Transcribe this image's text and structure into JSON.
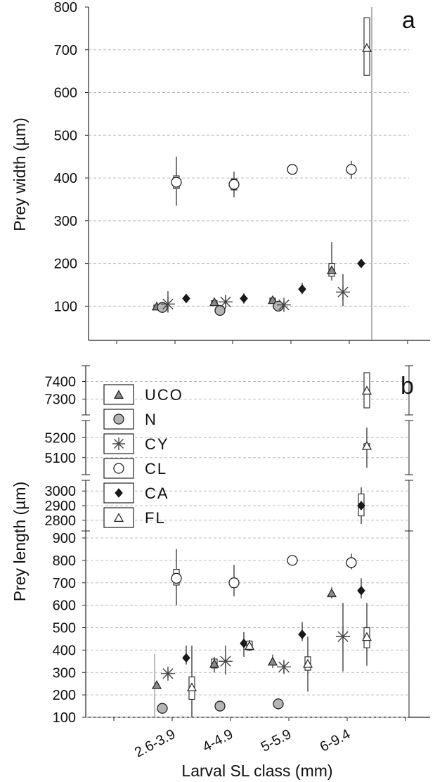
{
  "figure": {
    "xlabel": "Larval SL class (mm)",
    "categories": [
      "2.6-3.9",
      "4-4.9",
      "5-5.9",
      "6-9.4"
    ]
  },
  "legend": [
    {
      "key": "UCO",
      "label": "UCO",
      "marker": "triangle",
      "fill": "#8a8a8a"
    },
    {
      "key": "N",
      "label": "N",
      "marker": "circle",
      "fill": "#b5b5b5"
    },
    {
      "key": "CY",
      "label": "CY",
      "marker": "star",
      "fill": "none"
    },
    {
      "key": "CL",
      "label": "CL",
      "marker": "circle",
      "fill": "#ffffff"
    },
    {
      "key": "CA",
      "label": "CA",
      "marker": "diamond",
      "fill": "#1a1a1a"
    },
    {
      "key": "FL",
      "label": "FL",
      "marker": "triangle",
      "fill": "#ffffff"
    }
  ],
  "chart_data": [
    {
      "type": "scatter",
      "panel": "a",
      "ylabel": "Prey width (µm)",
      "ylim": [
        20,
        800
      ],
      "yticks": [
        "800",
        "700",
        "600",
        "500",
        "400",
        "300",
        "200",
        "100"
      ],
      "grid": true,
      "series": [
        {
          "name": "UCO",
          "points": [
            {
              "cat": "2.6-3.9",
              "y": 100,
              "lo": 95,
              "hi": 105,
              "box": [
                97,
                103
              ]
            },
            {
              "cat": "4-4.9",
              "y": 110,
              "lo": 105,
              "hi": 115,
              "box": [
                107,
                113
              ]
            },
            {
              "cat": "5-5.9",
              "y": 115,
              "lo": 108,
              "hi": 122,
              "box": [
                111,
                119
              ]
            },
            {
              "cat": "6-9.4",
              "y": 185,
              "lo": 160,
              "hi": 250,
              "box": [
                170,
                200
              ]
            }
          ]
        },
        {
          "name": "N",
          "points": [
            {
              "cat": "2.6-3.9",
              "y": 97,
              "lo": 92,
              "hi": 102,
              "box": null
            },
            {
              "cat": "4-4.9",
              "y": 90,
              "lo": 85,
              "hi": 95,
              "box": null
            },
            {
              "cat": "5-5.9",
              "y": 100,
              "lo": 90,
              "hi": 110,
              "box": null
            }
          ]
        },
        {
          "name": "CY",
          "points": [
            {
              "cat": "2.6-3.9",
              "y": 105,
              "lo": 85,
              "hi": 135,
              "box": null
            },
            {
              "cat": "4-4.9",
              "y": 110,
              "lo": 95,
              "hi": 125,
              "box": null
            },
            {
              "cat": "5-5.9",
              "y": 103,
              "lo": 95,
              "hi": 112,
              "box": null
            },
            {
              "cat": "6-9.4",
              "y": 133,
              "lo": 100,
              "hi": 175,
              "box": null
            }
          ]
        },
        {
          "name": "CL",
          "points": [
            {
              "cat": "2.6-3.9",
              "y": 390,
              "lo": 335,
              "hi": 450,
              "box": [
                375,
                405
              ]
            },
            {
              "cat": "4-4.9",
              "y": 385,
              "lo": 355,
              "hi": 415,
              "box": [
                372,
                398
              ]
            },
            {
              "cat": "5-5.9",
              "y": 420,
              "lo": 415,
              "hi": 425,
              "box": null
            },
            {
              "cat": "6-9.4",
              "y": 420,
              "lo": 398,
              "hi": 440,
              "box": null
            }
          ]
        },
        {
          "name": "CA",
          "points": [
            {
              "cat": "2.6-3.9",
              "y": 118,
              "lo": 108,
              "hi": 128,
              "box": null
            },
            {
              "cat": "4-4.9",
              "y": 118,
              "lo": 106,
              "hi": 130,
              "box": null
            },
            {
              "cat": "5-5.9",
              "y": 140,
              "lo": 128,
              "hi": 155,
              "box": null
            },
            {
              "cat": "6-9.4",
              "y": 200,
              "lo": 195,
              "hi": 205,
              "box": null
            }
          ]
        },
        {
          "name": "FL",
          "points": [
            {
              "cat": "6-9.4",
              "y": 705,
              "lo": 640,
              "hi": 770,
              "box": [
                640,
                775
              ]
            }
          ]
        }
      ]
    },
    {
      "type": "scatter",
      "panel": "b",
      "ylabel": "Prey length (µm)",
      "ylim": [
        100,
        900
      ],
      "yticks": [
        "900",
        "800",
        "700",
        "600",
        "500",
        "400",
        "300",
        "200",
        "100"
      ],
      "broken_y_segments": [
        {
          "ticks": [
            "7400",
            "7300"
          ],
          "ylim": [
            7250,
            7450
          ]
        },
        {
          "ticks": [
            "5200",
            "5100"
          ],
          "ylim": [
            5050,
            5250
          ]
        },
        {
          "ticks": [
            "3000",
            "2900",
            "2800"
          ],
          "ylim": [
            2775,
            3025
          ]
        }
      ],
      "grid": true,
      "series": [
        {
          "name": "UCO",
          "points": [
            {
              "cat": "2.6-3.9",
              "y": 245,
              "lo": 235,
              "hi": 255,
              "box": null
            },
            {
              "cat": "4-4.9",
              "y": 340,
              "lo": 300,
              "hi": 370,
              "box": [
                320,
                360
              ]
            },
            {
              "cat": "5-5.9",
              "y": 350,
              "lo": 320,
              "hi": 380,
              "box": null
            },
            {
              "cat": "6-9.4",
              "y": 655,
              "lo": 630,
              "hi": 680,
              "box": null
            }
          ]
        },
        {
          "name": "N",
          "points": [
            {
              "cat": "2.6-3.9",
              "y": 140,
              "lo": 130,
              "hi": 150,
              "box": null
            },
            {
              "cat": "4-4.9",
              "y": 150,
              "lo": 140,
              "hi": 160,
              "box": null
            },
            {
              "cat": "5-5.9",
              "y": 160,
              "lo": 135,
              "hi": 180,
              "box": null
            }
          ]
        },
        {
          "name": "CY",
          "points": [
            {
              "cat": "2.6-3.9",
              "y": 295,
              "lo": 275,
              "hi": 315,
              "box": null
            },
            {
              "cat": "4-4.9",
              "y": 350,
              "lo": 290,
              "hi": 420,
              "box": null
            },
            {
              "cat": "5-5.9",
              "y": 325,
              "lo": 300,
              "hi": 350,
              "box": null
            },
            {
              "cat": "6-9.4",
              "y": 460,
              "lo": 305,
              "hi": 610,
              "box": null
            }
          ]
        },
        {
          "name": "CL",
          "points": [
            {
              "cat": "2.6-3.9",
              "y": 720,
              "lo": 600,
              "hi": 850,
              "box": [
                690,
                760
              ]
            },
            {
              "cat": "4-4.9",
              "y": 700,
              "lo": 640,
              "hi": 780,
              "box": [
                680,
                720
              ]
            },
            {
              "cat": "5-5.9",
              "y": 800,
              "lo": 780,
              "hi": 815,
              "box": null
            },
            {
              "cat": "6-9.4",
              "y": 790,
              "lo": 760,
              "hi": 830,
              "box": null
            }
          ]
        },
        {
          "name": "CA",
          "points": [
            {
              "cat": "2.6-3.9",
              "y": 365,
              "lo": 335,
              "hi": 420,
              "box": null
            },
            {
              "cat": "4-4.9",
              "y": 430,
              "lo": 370,
              "hi": 480,
              "box": null
            },
            {
              "cat": "5-5.9",
              "y": 470,
              "lo": 440,
              "hi": 525,
              "box": null
            },
            {
              "cat": "6-9.4",
              "y": 665,
              "lo": 630,
              "hi": 720,
              "box": null
            }
          ]
        },
        {
          "name": "FL",
          "points": [
            {
              "cat": "2.6-3.9",
              "y": 235,
              "lo": 100,
              "hi": 420,
              "box": [
                180,
                280
              ]
            },
            {
              "cat": "4-4.9",
              "y": 420,
              "lo": 395,
              "hi": 445,
              "box": [
                400,
                440
              ]
            },
            {
              "cat": "5-5.9",
              "y": 340,
              "lo": 215,
              "hi": 460,
              "box": [
                310,
                370
              ]
            },
            {
              "cat": "6-9.4",
              "y": 460,
              "lo": 330,
              "hi": 610,
              "box": [
                410,
                500
              ]
            }
          ]
        }
      ],
      "broken_points": [
        {
          "name": "FL",
          "cat": "6-9.4",
          "y": 5160,
          "segment": 1,
          "lo": 5050,
          "hi": 5250,
          "box": [
            5150,
            5170
          ]
        },
        {
          "name": "FL",
          "cat": "6-9.4",
          "y": 7350,
          "segment": 0,
          "lo": 7250,
          "hi": 7450,
          "box": [
            7250,
            7450
          ]
        },
        {
          "name": "CA",
          "cat": "6-9.4",
          "y": 2900,
          "segment": 2,
          "lo": 2775,
          "hi": 3025,
          "box": [
            2830,
            2980
          ]
        }
      ]
    }
  ]
}
